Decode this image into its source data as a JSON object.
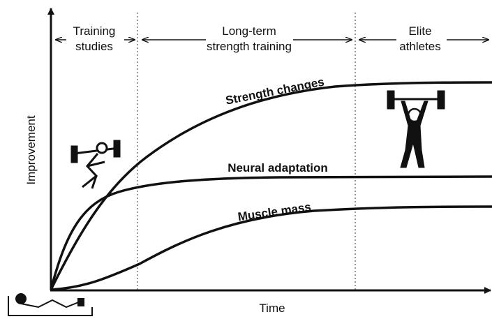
{
  "axes": {
    "y_label": "Improvement",
    "x_label": "Time"
  },
  "phases": [
    {
      "lines": [
        "Training",
        "studies"
      ]
    },
    {
      "lines": [
        "Long-term",
        "strength training"
      ]
    },
    {
      "lines": [
        "Elite",
        "athletes"
      ]
    }
  ],
  "curves": [
    {
      "label": "Strength changes"
    },
    {
      "label": "Neural adaptation"
    },
    {
      "label": "Muscle mass"
    }
  ]
}
